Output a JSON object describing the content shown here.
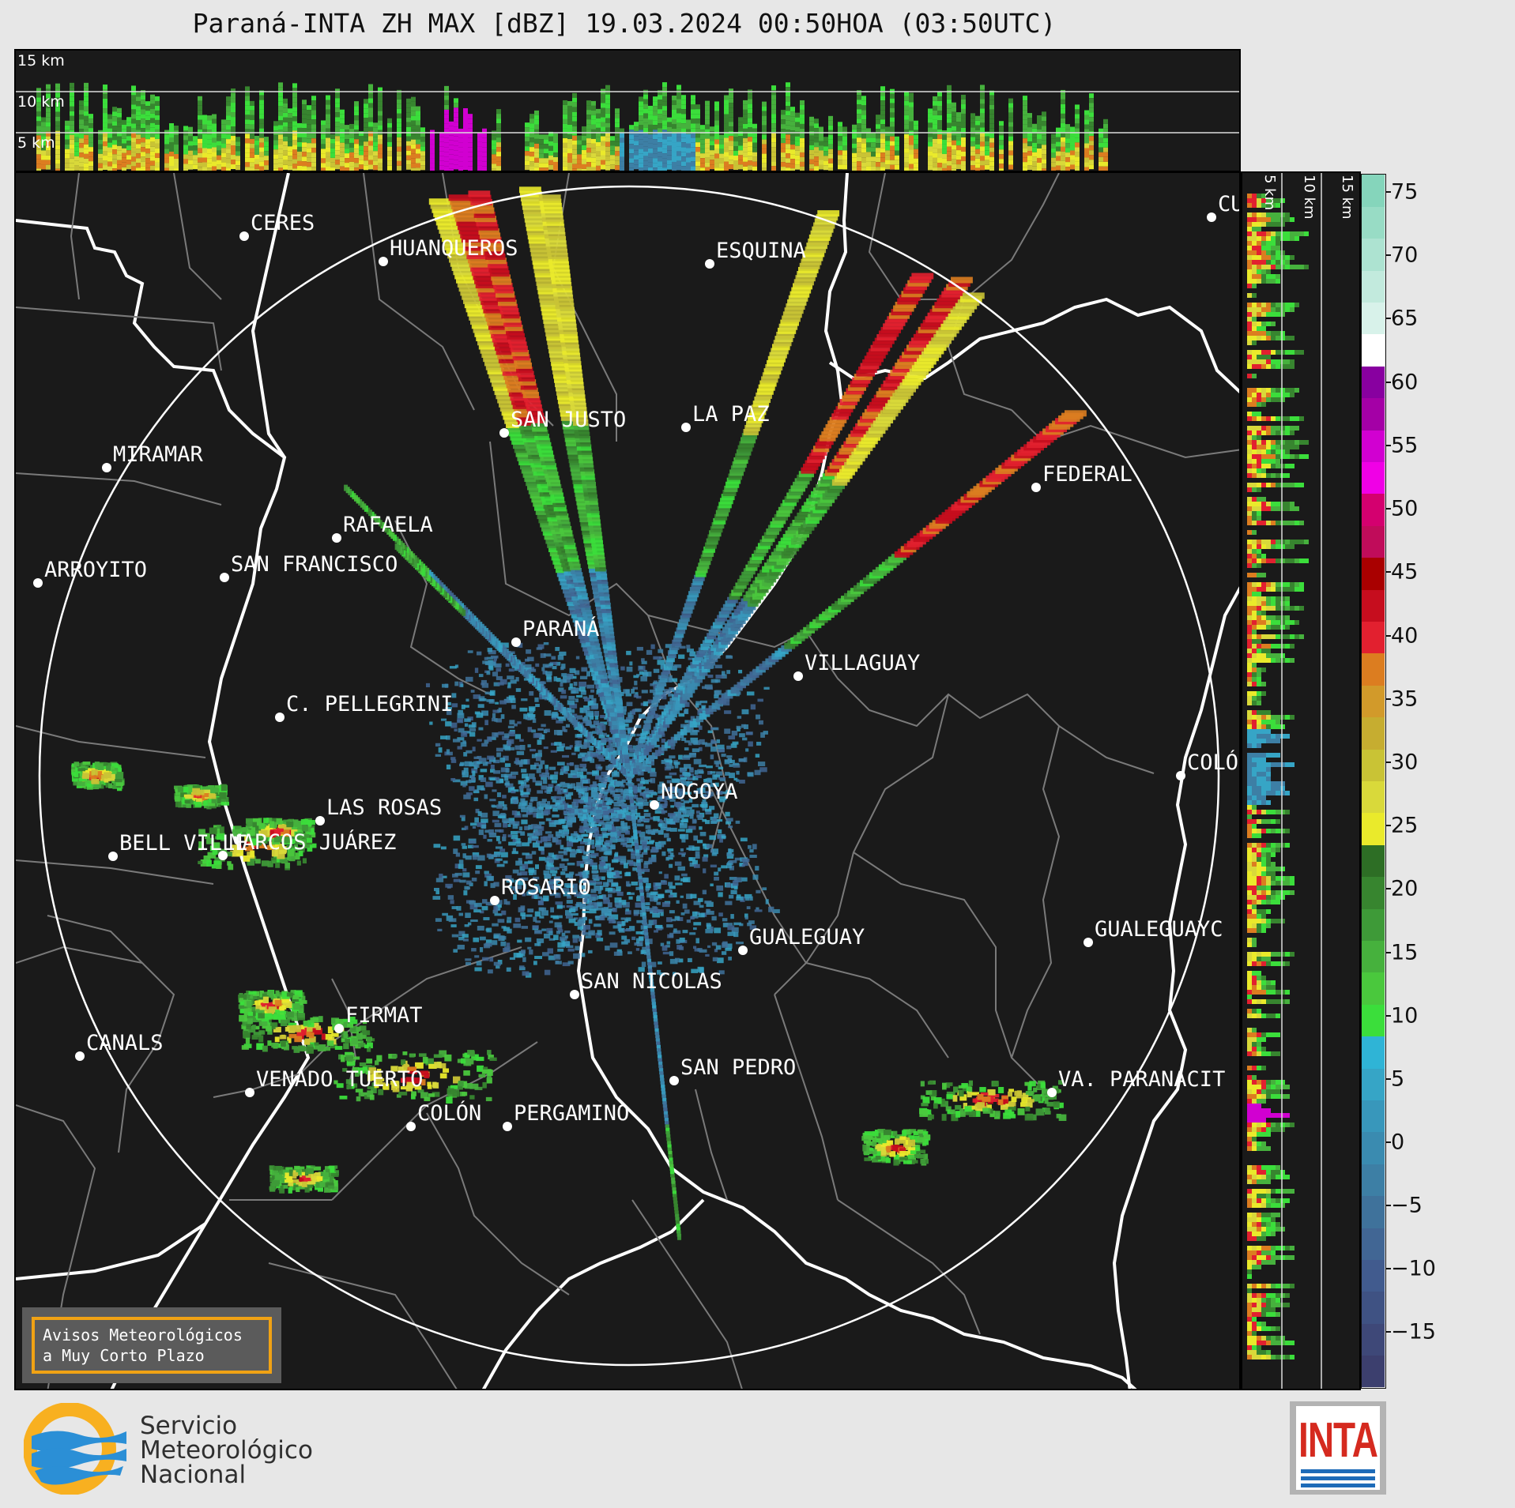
{
  "title": "Paraná-INTA ZH MAX [dBZ] 19.03.2024 00:50HOA (03:50UTC)",
  "top_panel": {
    "height_labels": [
      "15 km",
      "10 km",
      "5 km"
    ]
  },
  "side_panel": {
    "height_labels": [
      "5 km",
      "10 km",
      "15 km"
    ]
  },
  "colorbar": {
    "unit": "dBZ",
    "ticks": [
      "75",
      "70",
      "65",
      "60",
      "55",
      "50",
      "45",
      "40",
      "35",
      "30",
      "25",
      "20",
      "15",
      "10",
      "5",
      "0",
      "−5",
      "−10",
      "−15"
    ],
    "colors": [
      "#3c3f6e",
      "#3e4878",
      "#3f5283",
      "#415b8e",
      "#416694",
      "#3f729b",
      "#3d7fa5",
      "#3a8bb0",
      "#3897bb",
      "#36a5c6",
      "#2fb4d6",
      "#3bde3b",
      "#4ac83d",
      "#46b13d",
      "#3e9a38",
      "#37852f",
      "#2d6e25",
      "#eaea2b",
      "#d9d93a",
      "#c9c335",
      "#c6ad30",
      "#d29a2a",
      "#dc7d20",
      "#e2202f",
      "#c60d1e",
      "#a90000",
      "#c00c5a",
      "#d4006f",
      "#f000e6",
      "#d100d1",
      "#a400a6",
      "#8800a0",
      "#ffffff",
      "#d8f2ea",
      "#c2eadd",
      "#ade3d1",
      "#98dcc5",
      "#85d5bb"
    ]
  },
  "map": {
    "cities": [
      {
        "name": "CERES"
      },
      {
        "name": "HUANQUEROS"
      },
      {
        "name": "ESQUINA"
      },
      {
        "name": "CU"
      },
      {
        "name": "SAN JUSTO"
      },
      {
        "name": "LA PAZ"
      },
      {
        "name": "MIRAMAR"
      },
      {
        "name": "FEDERAL"
      },
      {
        "name": "RAFAELA"
      },
      {
        "name": "ARROYITO"
      },
      {
        "name": "SAN FRANCISCO"
      },
      {
        "name": "PARANÁ"
      },
      {
        "name": "VILLAGUAY"
      },
      {
        "name": "C. PELLEGRINI"
      },
      {
        "name": "COLÓ"
      },
      {
        "name": "NOGOYA"
      },
      {
        "name": "LAS ROSAS"
      },
      {
        "name": "BELL VILLE"
      },
      {
        "name": "MARCOS JUÁREZ"
      },
      {
        "name": "ROSARIO"
      },
      {
        "name": "GUALEGUAYC"
      },
      {
        "name": "GUALEGUAY"
      },
      {
        "name": "SAN NICOLAS"
      },
      {
        "name": "FIRMAT"
      },
      {
        "name": "CANALS"
      },
      {
        "name": "SAN PEDRO"
      },
      {
        "name": "VENADO TUERTO"
      },
      {
        "name": "VA. PARANACIT"
      },
      {
        "name": "COLÓN"
      },
      {
        "name": "PERGAMINO"
      }
    ]
  },
  "avisos": {
    "line1": "Avisos Meteorológicos",
    "line2": "a Muy Corto Plazo"
  },
  "smn": {
    "line1": "Servicio",
    "line2": "Meteorológico",
    "line3": "Nacional"
  },
  "inta": {
    "text": "INTA"
  }
}
